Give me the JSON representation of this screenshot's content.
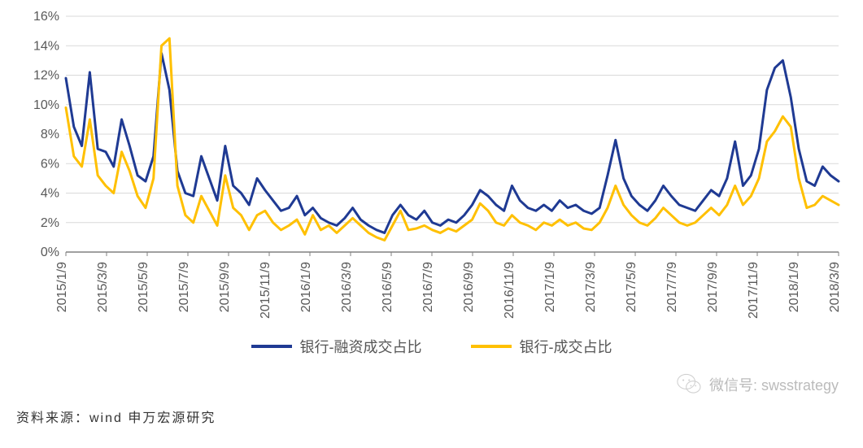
{
  "chart": {
    "type": "line",
    "background_color": "#ffffff",
    "grid_color": "#d9d9d9",
    "axis_color": "#808080",
    "text_color": "#595959",
    "font_size_axis": 16,
    "font_size_legend": 18,
    "line_width": 3,
    "ylim": [
      0,
      16
    ],
    "ytick_step": 2,
    "yticks": [
      "0%",
      "2%",
      "4%",
      "6%",
      "8%",
      "10%",
      "12%",
      "14%",
      "16%"
    ],
    "xlabels": [
      "2015/1/9",
      "2015/3/9",
      "2015/5/9",
      "2015/7/9",
      "2015/9/9",
      "2015/11/9",
      "2016/1/9",
      "2016/3/9",
      "2016/5/9",
      "2016/7/9",
      "2016/9/9",
      "2016/11/9",
      "2017/1/9",
      "2017/3/9",
      "2017/5/9",
      "2017/7/9",
      "2017/9/9",
      "2017/11/9",
      "2018/1/9",
      "2018/3/9"
    ],
    "series": [
      {
        "name": "银行-融资成交占比",
        "color": "#1f3a93",
        "data": [
          11.8,
          8.5,
          7.2,
          12.2,
          7.0,
          6.8,
          5.8,
          9.0,
          7.2,
          5.2,
          4.8,
          6.5,
          13.5,
          11.0,
          5.5,
          4.0,
          3.8,
          6.5,
          5.0,
          3.5,
          7.2,
          4.5,
          4.0,
          3.2,
          5.0,
          4.2,
          3.5,
          2.8,
          3.0,
          3.8,
          2.5,
          3.0,
          2.3,
          2.0,
          1.8,
          2.3,
          3.0,
          2.2,
          1.8,
          1.5,
          1.3,
          2.5,
          3.2,
          2.5,
          2.2,
          2.8,
          2.0,
          1.8,
          2.2,
          2.0,
          2.5,
          3.2,
          4.2,
          3.8,
          3.2,
          2.8,
          4.5,
          3.5,
          3.0,
          2.8,
          3.2,
          2.8,
          3.5,
          3.0,
          3.2,
          2.8,
          2.6,
          3.0,
          5.2,
          7.6,
          5.0,
          3.8,
          3.2,
          2.8,
          3.5,
          4.5,
          3.8,
          3.2,
          3.0,
          2.8,
          3.5,
          4.2,
          3.8,
          5.0,
          7.5,
          4.5,
          5.2,
          7.0,
          11.0,
          12.5,
          13.0,
          10.5,
          7.0,
          4.8,
          4.5,
          5.8,
          5.2,
          4.8
        ]
      },
      {
        "name": "银行-成交占比",
        "color": "#ffc000",
        "data": [
          9.8,
          6.5,
          5.8,
          9.0,
          5.2,
          4.5,
          4.0,
          6.8,
          5.5,
          3.8,
          3.0,
          5.0,
          14.0,
          14.5,
          4.5,
          2.5,
          2.0,
          3.8,
          2.8,
          1.8,
          5.2,
          3.0,
          2.5,
          1.5,
          2.5,
          2.8,
          2.0,
          1.5,
          1.8,
          2.2,
          1.2,
          2.5,
          1.5,
          1.8,
          1.3,
          1.8,
          2.3,
          1.8,
          1.3,
          1.0,
          0.8,
          1.8,
          2.8,
          1.5,
          1.6,
          1.8,
          1.5,
          1.3,
          1.6,
          1.4,
          1.8,
          2.2,
          3.3,
          2.8,
          2.0,
          1.8,
          2.5,
          2.0,
          1.8,
          1.5,
          2.0,
          1.8,
          2.2,
          1.8,
          2.0,
          1.6,
          1.5,
          2.0,
          3.0,
          4.5,
          3.2,
          2.5,
          2.0,
          1.8,
          2.3,
          3.0,
          2.5,
          2.0,
          1.8,
          2.0,
          2.5,
          3.0,
          2.5,
          3.2,
          4.5,
          3.2,
          3.8,
          5.0,
          7.5,
          8.2,
          9.2,
          8.5,
          5.0,
          3.0,
          3.2,
          3.8,
          3.5,
          3.2
        ]
      }
    ]
  },
  "source": "资料来源：wind 申万宏源研究",
  "watermark": {
    "label": "微信号",
    "id": "swsstrategy"
  }
}
